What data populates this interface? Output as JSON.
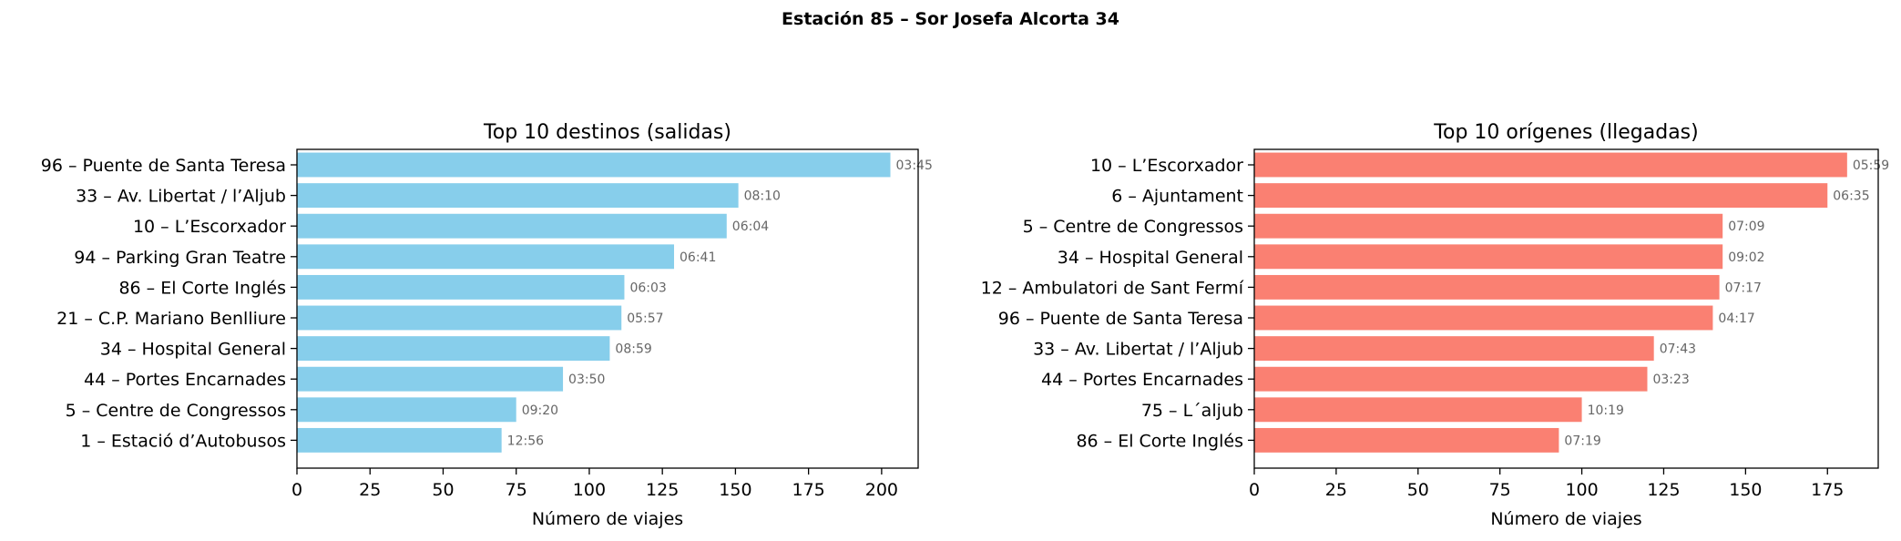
{
  "figure": {
    "title": "Estación 85 – Sor Josefa Alcorta 34"
  },
  "chart_data": [
    {
      "type": "bar",
      "orientation": "horizontal",
      "title": "Top 10 destinos (salidas)",
      "xlabel": "Número de viajes",
      "ylabel": "",
      "xlim": [
        0,
        212.5
      ],
      "xticks": [
        0,
        25,
        50,
        75,
        100,
        125,
        150,
        175,
        200
      ],
      "color": "#87CEEB",
      "grid": false,
      "categories": [
        "96 – Puente de Santa Teresa",
        "33 – Av. Libertat / l’Aljub",
        "10 – L’Escorxador",
        "94 – Parking Gran Teatre",
        "86 – El Corte Inglés",
        "21 – C.P. Mariano Benlliure",
        "34 – Hospital General",
        "44 – Portes Encarnades",
        "5 – Centre de Congressos",
        "1 – Estació d’Autobusos"
      ],
      "values": [
        203,
        151,
        147,
        129,
        112,
        111,
        107,
        91,
        75,
        70
      ],
      "labels": [
        "03:45",
        "08:10",
        "06:04",
        "06:41",
        "06:03",
        "05:57",
        "08:59",
        "03:50",
        "09:20",
        "12:56"
      ]
    },
    {
      "type": "bar",
      "orientation": "horizontal",
      "title": "Top 10 orígenes (llegadas)",
      "xlabel": "Número de viajes",
      "ylabel": "",
      "xlim": [
        0,
        190.5
      ],
      "xticks": [
        0,
        25,
        50,
        75,
        100,
        125,
        150,
        175
      ],
      "color": "#FA8072",
      "grid": false,
      "categories": [
        "10 – L’Escorxador",
        "6 – Ajuntament",
        "5 – Centre de Congressos",
        "34 – Hospital General",
        "12 – Ambulatori de Sant Fermí",
        "96 – Puente de Santa Teresa",
        "33 – Av. Libertat / l’Aljub",
        "44 – Portes Encarnades",
        "75 – L´aljub",
        "86 – El Corte Inglés"
      ],
      "values": [
        181,
        175,
        143,
        143,
        142,
        140,
        122,
        120,
        100,
        93
      ],
      "labels": [
        "05:59",
        "06:35",
        "07:09",
        "09:02",
        "07:17",
        "04:17",
        "07:43",
        "03:23",
        "10:19",
        "07:19"
      ]
    }
  ]
}
